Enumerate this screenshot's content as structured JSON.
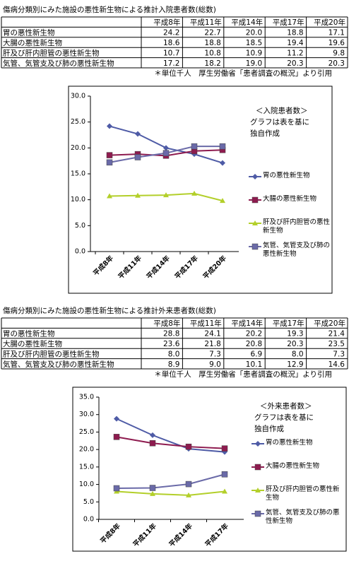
{
  "tables": [
    {
      "title": "傷病分類別にみた施設の悪性新生物による推計入院患者数(総数)",
      "header": [
        "平成8年",
        "平成11年",
        "平成14年",
        "平成17年",
        "平成20年"
      ],
      "rows": [
        [
          "胃の悪性新生物",
          "24.2",
          "22.7",
          "20.0",
          "18.8",
          "17.1"
        ],
        [
          "大腸の悪性新生物",
          "18.6",
          "18.8",
          "18.5",
          "19.4",
          "19.6"
        ],
        [
          "肝及び肝内胆管の悪性新生物",
          "10.7",
          "10.8",
          "10.9",
          "11.2",
          "9.8"
        ],
        [
          "気管、気管支及び肺の悪性新生物",
          "17.2",
          "18.2",
          "19.0",
          "20.3",
          "20.3"
        ]
      ],
      "note": "＊単位千人　厚生労働省「患者調査の概況」より引用"
    },
    {
      "title": "傷病分類別にみた施設の悪性新生物による推計外来患者数(総数)",
      "header": [
        "平成8年",
        "平成11年",
        "平成14年",
        "平成17年",
        "平成20年"
      ],
      "rows": [
        [
          "胃の悪性新生物",
          "28.8",
          "24.1",
          "20.2",
          "19.3",
          "21.4"
        ],
        [
          "大腸の悪性新生物",
          "23.6",
          "21.8",
          "20.8",
          "20.3",
          "23.5"
        ],
        [
          "肝及び肝内胆管の悪性新生物",
          "8.0",
          "7.3",
          "6.9",
          "8.0",
          "7.3"
        ],
        [
          "気管、気管支及び肺の悪性新生物",
          "8.9",
          "9.0",
          "10.1",
          "12.9",
          "14.6"
        ]
      ],
      "note": "＊単位千人　厚生労働省「患者調査の概況」より引用"
    }
  ],
  "chart_data": [
    {
      "type": "line",
      "annotation": [
        "＜入院患者数＞",
        "グラフは表を基に",
        "独自作成"
      ],
      "categories": [
        "平成8年",
        "平成11年",
        "平成14年",
        "平成17年",
        "平成20年"
      ],
      "ylim": [
        0,
        30
      ],
      "yticks": [
        {
          "value": 0,
          "label": "0.0"
        },
        {
          "value": 5,
          "label": "5.0"
        },
        {
          "value": 10,
          "label": "10.0"
        },
        {
          "value": 15,
          "label": "15.0"
        },
        {
          "value": 20,
          "label": "20.0"
        },
        {
          "value": 25,
          "label": "25.0"
        },
        {
          "value": 30,
          "label": "30.0"
        }
      ],
      "legend": "right",
      "series": [
        {
          "name": "胃の悪性新生物",
          "color": "#4e5ba6",
          "marker": "diamond",
          "values": [
            24.2,
            22.7,
            20.0,
            18.8,
            17.1
          ]
        },
        {
          "name": "大腸の悪性新生物",
          "color": "#8e1b4f",
          "marker": "square",
          "values": [
            18.6,
            18.8,
            18.5,
            19.4,
            19.6
          ]
        },
        {
          "name": "肝及び肝内胆管の悪性新生物",
          "color": "#b3cf2a",
          "marker": "triangle",
          "values": [
            10.7,
            10.8,
            10.9,
            11.2,
            9.8
          ]
        },
        {
          "name": "気管、気管支及び肺の悪性新生物",
          "color": "#6a6aa8",
          "marker": "square",
          "values": [
            17.2,
            18.2,
            19.0,
            20.3,
            20.3
          ]
        }
      ]
    },
    {
      "type": "line",
      "annotation": [
        "＜外来患者数＞",
        "グラフは表を基に",
        "独自作成"
      ],
      "categories": [
        "平成8年",
        "平成11年",
        "平成14年",
        "平成17年"
      ],
      "ylim": [
        0,
        35
      ],
      "yticks": [
        {
          "value": 0,
          "label": "0.0"
        },
        {
          "value": 5,
          "label": "5.0"
        },
        {
          "value": 10,
          "label": "10.0"
        },
        {
          "value": 15,
          "label": "15.0"
        },
        {
          "value": 20,
          "label": "20.0"
        },
        {
          "value": 25,
          "label": "25.0"
        },
        {
          "value": 30,
          "label": "30.0"
        },
        {
          "value": 35,
          "label": "35.0"
        }
      ],
      "legend": "right",
      "series": [
        {
          "name": "胃の悪性新生物",
          "color": "#4e5ba6",
          "marker": "diamond",
          "values": [
            28.8,
            24.1,
            20.2,
            19.3
          ]
        },
        {
          "name": "大腸の悪性新生物",
          "color": "#8e1b4f",
          "marker": "square",
          "values": [
            23.6,
            21.8,
            20.8,
            20.3
          ]
        },
        {
          "name": "肝及び肝内胆管の悪性新生物",
          "color": "#b3cf2a",
          "marker": "triangle",
          "values": [
            8.0,
            7.3,
            6.9,
            8.0
          ]
        },
        {
          "name": "気管、気管支及び肺の悪性新生物",
          "color": "#6a6aa8",
          "marker": "square",
          "values": [
            8.9,
            9.0,
            10.1,
            12.9
          ]
        }
      ]
    }
  ]
}
